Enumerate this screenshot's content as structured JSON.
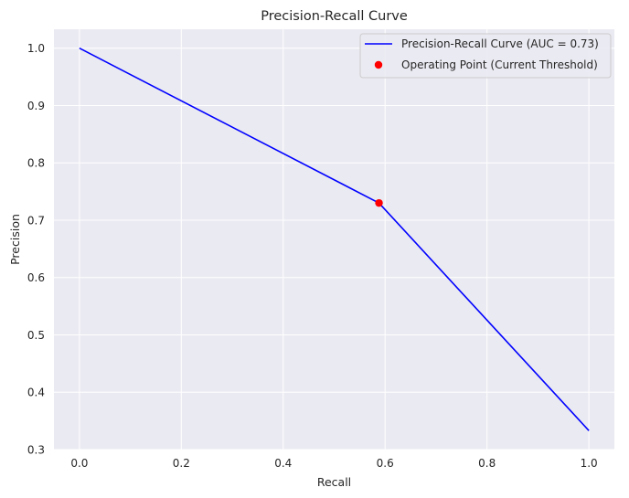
{
  "chart_data": {
    "type": "line",
    "title": "Precision-Recall Curve",
    "xlabel": "Recall",
    "ylabel": "Precision",
    "xlim": [
      -0.05,
      1.05
    ],
    "ylim": [
      0.3,
      1.033
    ],
    "xticks": [
      0.0,
      0.2,
      0.4,
      0.6,
      0.8,
      1.0
    ],
    "xtick_labels": [
      "0.0",
      "0.2",
      "0.4",
      "0.6",
      "0.8",
      "1.0"
    ],
    "yticks": [
      0.3,
      0.4,
      0.5,
      0.6,
      0.7,
      0.8,
      0.9,
      1.0
    ],
    "ytick_labels": [
      "0.3",
      "0.4",
      "0.5",
      "0.6",
      "0.7",
      "0.8",
      "0.9",
      "1.0"
    ],
    "grid": true,
    "legend_position": "top-right",
    "series": [
      {
        "name": "Precision-Recall Curve (AUC = 0.73)",
        "kind": "line",
        "color": "#0000ff",
        "x": [
          0.0,
          0.588,
          1.0
        ],
        "y": [
          1.0,
          0.73,
          0.333
        ]
      },
      {
        "name": "Operating Point (Current Threshold)",
        "kind": "scatter",
        "color": "#ff0000",
        "x": [
          0.588
        ],
        "y": [
          0.73
        ]
      }
    ],
    "background_color": "#eaeaf2",
    "grid_color": "#ffffff"
  }
}
